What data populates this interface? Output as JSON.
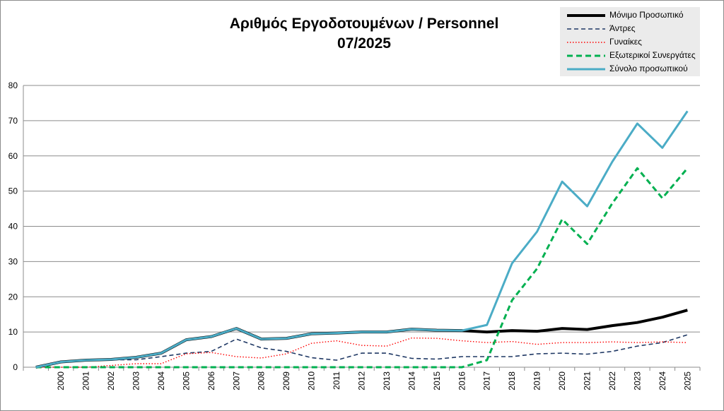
{
  "chart_data": {
    "type": "line",
    "title": "Αριθμός Εργοδοτουμένων / Personnel",
    "subtitle": "07/2025",
    "x": [
      "",
      "2000",
      "2001",
      "2002",
      "2003",
      "2004",
      "2005",
      "2006",
      "2007",
      "2008",
      "2009",
      "2010",
      "2011",
      "2012",
      "2013",
      "2014",
      "2015",
      "2016",
      "2017",
      "2018",
      "2019",
      "2020",
      "2021",
      "2022",
      "2023",
      "2024",
      "2025"
    ],
    "ylim": [
      0,
      80
    ],
    "yticks": [
      0,
      10,
      20,
      30,
      40,
      50,
      60,
      70,
      80
    ],
    "grid": true,
    "legend": "top-right",
    "series": [
      {
        "name": "Μόνιμο Προσωπικό",
        "color": "#000000",
        "style": "solid-thick",
        "values": [
          0,
          1.5,
          2,
          2.2,
          2.8,
          4,
          7.8,
          8.7,
          11,
          8,
          8.2,
          9.5,
          9.7,
          10,
          10,
          10.8,
          10.5,
          10.4,
          10,
          10.4,
          10.2,
          11,
          10.7,
          11.8,
          12.7,
          14.2,
          16.2
        ]
      },
      {
        "name": "Άντρες",
        "color": "#1f3864",
        "style": "dashed",
        "values": [
          0,
          1.5,
          2,
          2.1,
          2.1,
          3,
          4,
          4.5,
          8,
          5.5,
          4.5,
          2.7,
          2,
          4,
          4,
          2.5,
          2.3,
          3,
          3,
          3,
          3.8,
          4,
          3.7,
          4.5,
          6,
          7,
          9.2
        ]
      },
      {
        "name": "Γυναίκες",
        "color": "#ff0000",
        "style": "dotted",
        "values": [
          0,
          0,
          0,
          0.5,
          1,
          1,
          3.8,
          4.2,
          3,
          2.6,
          3.8,
          6.8,
          7.5,
          6.2,
          6,
          8.3,
          8.2,
          7.5,
          7,
          7.3,
          6.5,
          7,
          7,
          7.2,
          7,
          7.2,
          7
        ]
      },
      {
        "name": "Εξωτερικοί Συνεργάτες",
        "color": "#00b050",
        "style": "dashed-thick",
        "values": [
          0,
          0,
          0,
          0,
          0,
          0,
          0,
          0,
          0,
          0,
          0,
          0,
          0,
          0,
          0,
          0,
          0,
          0,
          2,
          19,
          28,
          42,
          35,
          46.5,
          56.5,
          48,
          56.5
        ]
      },
      {
        "name": "Σύνολο προσωπικού",
        "color": "#4bacc6",
        "style": "solid",
        "values": [
          0,
          1.5,
          2,
          2.2,
          2.8,
          4,
          7.8,
          8.7,
          11,
          8,
          8.2,
          9.5,
          9.7,
          10,
          10,
          10.8,
          10.5,
          10.4,
          12,
          29.5,
          38.5,
          52.7,
          45.7,
          58.3,
          69.2,
          62.3,
          72.7
        ]
      }
    ]
  }
}
